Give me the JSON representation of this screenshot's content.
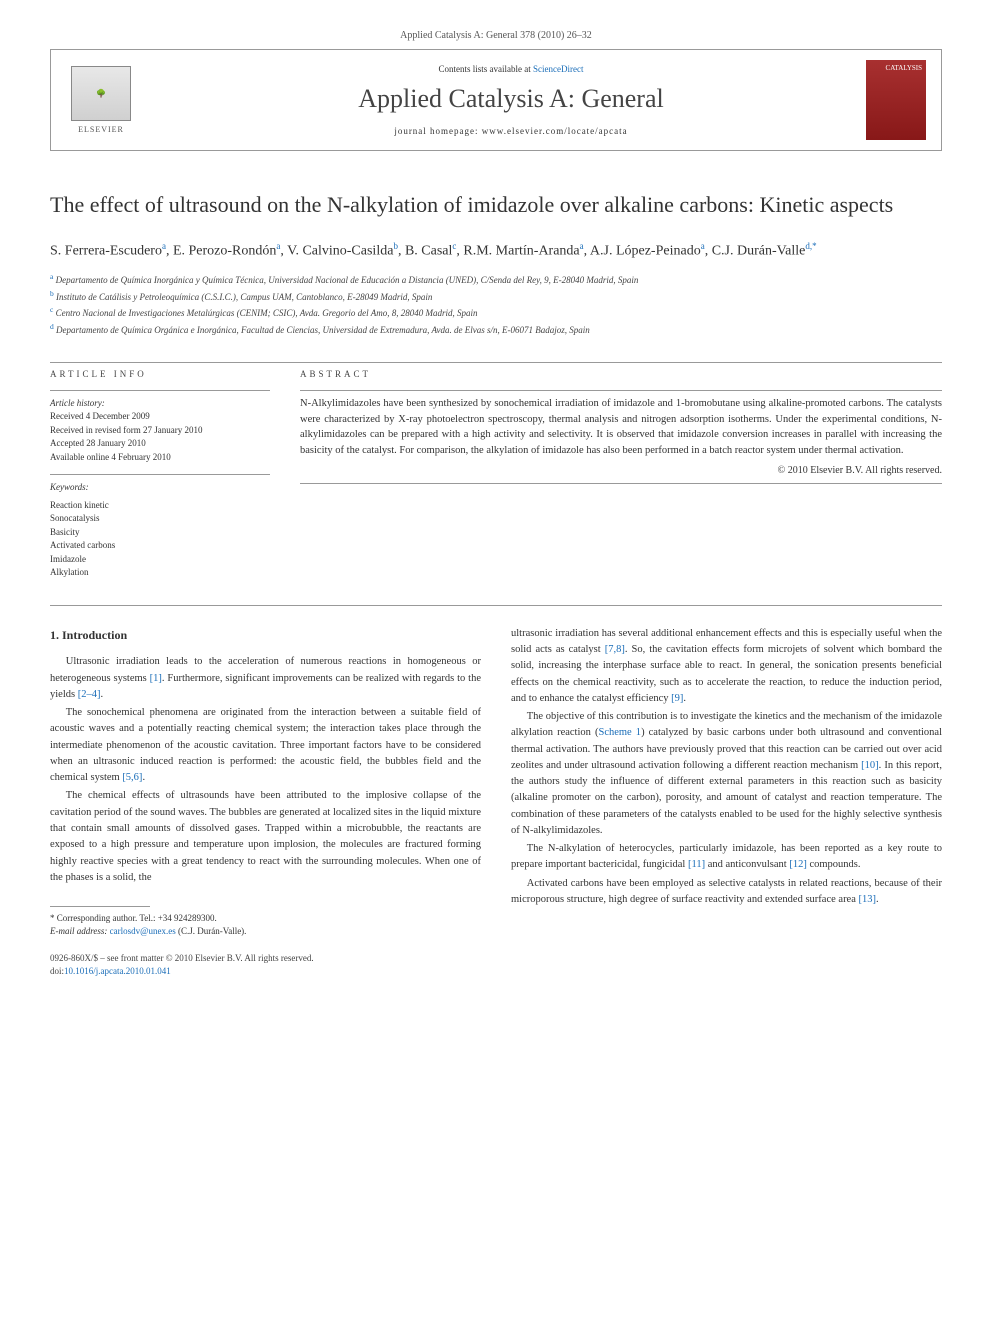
{
  "header": {
    "citation": "Applied Catalysis A: General 378 (2010) 26–32",
    "contents_prefix": "Contents lists available at ",
    "contents_link": "ScienceDirect",
    "journal": "Applied Catalysis A: General",
    "homepage_prefix": "journal homepage: ",
    "homepage_url": "www.elsevier.com/locate/apcata",
    "elsevier": "ELSEVIER",
    "cover_text": "CATALYSIS"
  },
  "title": "The effect of ultrasound on the N-alkylation of imidazole over alkaline carbons: Kinetic aspects",
  "authors_html": "S. Ferrera-Escudero<sup>a</sup>, E. Perozo-Rondón<sup>a</sup>, V. Calvino-Casilda<sup>b</sup>, B. Casal<sup>c</sup>, R.M. Martín-Aranda<sup>a</sup>, A.J. López-Peinado<sup>a</sup>, C.J. Durán-Valle<sup>d,*</sup>",
  "affiliations": [
    {
      "sup": "a",
      "text": "Departamento de Química Inorgánica y Química Técnica, Universidad Nacional de Educación a Distancia (UNED), C/Senda del Rey, 9, E-28040 Madrid, Spain"
    },
    {
      "sup": "b",
      "text": "Instituto de Catálisis y Petroleoquímica (C.S.I.C.), Campus UAM, Cantoblanco, E-28049 Madrid, Spain"
    },
    {
      "sup": "c",
      "text": "Centro Nacional de Investigaciones Metalúrgicas (CENIM; CSIC), Avda. Gregorio del Amo, 8, 28040 Madrid, Spain"
    },
    {
      "sup": "d",
      "text": "Departamento de Química Orgánica e Inorgánica, Facultad de Ciencias, Universidad de Extremadura, Avda. de Elvas s/n, E-06071 Badajoz, Spain"
    }
  ],
  "article_info": {
    "label": "ARTICLE INFO",
    "history_label": "Article history:",
    "history": [
      "Received 4 December 2009",
      "Received in revised form 27 January 2010",
      "Accepted 28 January 2010",
      "Available online 4 February 2010"
    ],
    "keywords_label": "Keywords:",
    "keywords": [
      "Reaction kinetic",
      "Sonocatalysis",
      "Basicity",
      "Activated carbons",
      "Imidazole",
      "Alkylation"
    ]
  },
  "abstract": {
    "label": "ABSTRACT",
    "text": "N-Alkylimidazoles have been synthesized by sonochemical irradiation of imidazole and 1-bromobutane using alkaline-promoted carbons. The catalysts were characterized by X-ray photoelectron spectroscopy, thermal analysis and nitrogen adsorption isotherms. Under the experimental conditions, N-alkylimidazoles can be prepared with a high activity and selectivity. It is observed that imidazole conversion increases in parallel with increasing the basicity of the catalyst. For comparison, the alkylation of imidazole has also been performed in a batch reactor system under thermal activation.",
    "copyright": "© 2010 Elsevier B.V. All rights reserved."
  },
  "body": {
    "intro_heading": "1. Introduction",
    "left_paras": [
      "Ultrasonic irradiation leads to the acceleration of numerous reactions in homogeneous or heterogeneous systems [1]. Furthermore, significant improvements can be realized with regards to the yields [2–4].",
      "The sonochemical phenomena are originated from the interaction between a suitable field of acoustic waves and a potentially reacting chemical system; the interaction takes place through the intermediate phenomenon of the acoustic cavitation. Three important factors have to be considered when an ultrasonic induced reaction is performed: the acoustic field, the bubbles field and the chemical system [5,6].",
      "The chemical effects of ultrasounds have been attributed to the implosive collapse of the cavitation period of the sound waves. The bubbles are generated at localized sites in the liquid mixture that contain small amounts of dissolved gases. Trapped within a microbubble, the reactants are exposed to a high pressure and temperature upon implosion, the molecules are fractured forming highly reactive species with a great tendency to react with the surrounding molecules. When one of the phases is a solid, the"
    ],
    "right_paras": [
      "ultrasonic irradiation has several additional enhancement effects and this is especially useful when the solid acts as catalyst [7,8]. So, the cavitation effects form microjets of solvent which bombard the solid, increasing the interphase surface able to react. In general, the sonication presents beneficial effects on the chemical reactivity, such as to accelerate the reaction, to reduce the induction period, and to enhance the catalyst efficiency [9].",
      "The objective of this contribution is to investigate the kinetics and the mechanism of the imidazole alkylation reaction (Scheme 1) catalyzed by basic carbons under both ultrasound and conventional thermal activation. The authors have previously proved that this reaction can be carried out over acid zeolites and under ultrasound activation following a different reaction mechanism [10]. In this report, the authors study the influence of different external parameters in this reaction such as basicity (alkaline promoter on the carbon), porosity, and amount of catalyst and reaction temperature. The combination of these parameters of the catalysts enabled to be used for the highly selective synthesis of N-alkylimidazoles.",
      "The N-alkylation of heterocycles, particularly imidazole, has been reported as a key route to prepare important bactericidal, fungicidal [11] and anticonvulsant [12] compounds.",
      "Activated carbons have been employed as selective catalysts in related reactions, because of their microporous structure, high degree of surface reactivity and extended surface area [13]."
    ]
  },
  "footnote": {
    "corr": "* Corresponding author. Tel.: +34 924289300.",
    "email_label": "E-mail address: ",
    "email": "carlosdv@unex.es",
    "email_suffix": " (C.J. Durán-Valle)."
  },
  "footer": {
    "issn_line": "0926-860X/$ – see front matter © 2010 Elsevier B.V. All rights reserved.",
    "doi_label": "doi:",
    "doi": "10.1016/j.apcata.2010.01.041"
  },
  "colors": {
    "link": "#1a6db8",
    "rule": "#999999",
    "cover_bg": "#a83030"
  }
}
